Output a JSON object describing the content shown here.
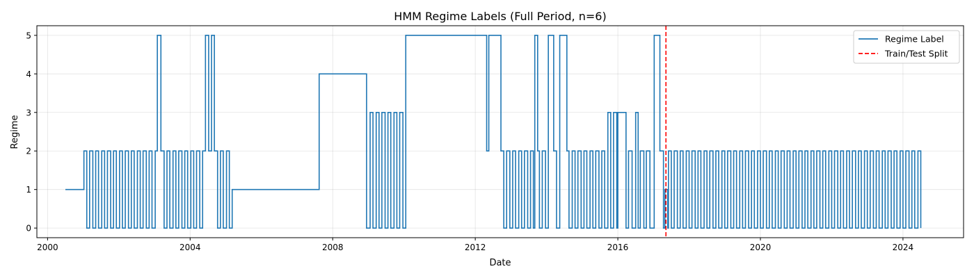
{
  "chart_data": {
    "type": "line",
    "title": "HMM Regime Labels (Full Period, n=6)",
    "xlabel": "Date",
    "ylabel": "Regime",
    "x_ticks": [
      "2000",
      "2004",
      "2008",
      "2012",
      "2016",
      "2020",
      "2024"
    ],
    "y_ticks": [
      "0",
      "1",
      "2",
      "3",
      "4",
      "5"
    ],
    "xlim": [
      1999.7,
      2025.7
    ],
    "ylim": [
      -0.25,
      5.25
    ],
    "grid": true,
    "legend_position": "top-right",
    "series": [
      {
        "name": "Regime Label",
        "color": "#1f77b4",
        "style": "step",
        "points": [
          [
            2000.5,
            1
          ],
          [
            2001.02,
            2
          ],
          [
            2001.1,
            0
          ],
          [
            2001.18,
            2
          ],
          [
            2001.27,
            0
          ],
          [
            2001.35,
            2
          ],
          [
            2001.43,
            0
          ],
          [
            2001.52,
            2
          ],
          [
            2001.6,
            0
          ],
          [
            2001.68,
            2
          ],
          [
            2001.77,
            0
          ],
          [
            2001.85,
            2
          ],
          [
            2001.93,
            0
          ],
          [
            2002.02,
            2
          ],
          [
            2002.1,
            0
          ],
          [
            2002.18,
            2
          ],
          [
            2002.27,
            0
          ],
          [
            2002.35,
            2
          ],
          [
            2002.43,
            0
          ],
          [
            2002.52,
            2
          ],
          [
            2002.6,
            0
          ],
          [
            2002.68,
            2
          ],
          [
            2002.77,
            0
          ],
          [
            2002.85,
            2
          ],
          [
            2002.93,
            0
          ],
          [
            2003.02,
            2
          ],
          [
            2003.08,
            5
          ],
          [
            2003.18,
            2
          ],
          [
            2003.27,
            0
          ],
          [
            2003.35,
            2
          ],
          [
            2003.43,
            0
          ],
          [
            2003.52,
            2
          ],
          [
            2003.6,
            0
          ],
          [
            2003.68,
            2
          ],
          [
            2003.77,
            0
          ],
          [
            2003.85,
            2
          ],
          [
            2003.93,
            0
          ],
          [
            2004.02,
            2
          ],
          [
            2004.1,
            0
          ],
          [
            2004.18,
            2
          ],
          [
            2004.27,
            0
          ],
          [
            2004.35,
            2
          ],
          [
            2004.43,
            5
          ],
          [
            2004.52,
            2
          ],
          [
            2004.6,
            5
          ],
          [
            2004.68,
            2
          ],
          [
            2004.77,
            0
          ],
          [
            2004.85,
            2
          ],
          [
            2004.93,
            0
          ],
          [
            2005.02,
            2
          ],
          [
            2005.1,
            0
          ],
          [
            2005.18,
            1
          ],
          [
            2007.62,
            4
          ],
          [
            2008.95,
            0
          ],
          [
            2009.05,
            3
          ],
          [
            2009.13,
            0
          ],
          [
            2009.22,
            3
          ],
          [
            2009.3,
            0
          ],
          [
            2009.38,
            3
          ],
          [
            2009.47,
            0
          ],
          [
            2009.55,
            3
          ],
          [
            2009.63,
            0
          ],
          [
            2009.72,
            3
          ],
          [
            2009.8,
            0
          ],
          [
            2009.88,
            3
          ],
          [
            2009.97,
            0
          ],
          [
            2010.05,
            5
          ],
          [
            2012.32,
            2
          ],
          [
            2012.38,
            5
          ],
          [
            2012.72,
            2
          ],
          [
            2012.8,
            0
          ],
          [
            2012.88,
            2
          ],
          [
            2012.97,
            0
          ],
          [
            2013.05,
            2
          ],
          [
            2013.13,
            0
          ],
          [
            2013.22,
            2
          ],
          [
            2013.3,
            0
          ],
          [
            2013.38,
            2
          ],
          [
            2013.47,
            0
          ],
          [
            2013.55,
            2
          ],
          [
            2013.63,
            0
          ],
          [
            2013.67,
            5
          ],
          [
            2013.75,
            2
          ],
          [
            2013.8,
            0
          ],
          [
            2013.88,
            2
          ],
          [
            2013.97,
            0
          ],
          [
            2014.05,
            5
          ],
          [
            2014.2,
            2
          ],
          [
            2014.28,
            0
          ],
          [
            2014.37,
            5
          ],
          [
            2014.57,
            2
          ],
          [
            2014.63,
            0
          ],
          [
            2014.72,
            2
          ],
          [
            2014.8,
            0
          ],
          [
            2014.88,
            2
          ],
          [
            2014.97,
            0
          ],
          [
            2015.05,
            2
          ],
          [
            2015.13,
            0
          ],
          [
            2015.22,
            2
          ],
          [
            2015.3,
            0
          ],
          [
            2015.38,
            2
          ],
          [
            2015.47,
            0
          ],
          [
            2015.55,
            2
          ],
          [
            2015.63,
            0
          ],
          [
            2015.72,
            3
          ],
          [
            2015.8,
            0
          ],
          [
            2015.88,
            3
          ],
          [
            2015.97,
            0
          ],
          [
            2016.0,
            3
          ],
          [
            2016.23,
            0
          ],
          [
            2016.3,
            2
          ],
          [
            2016.4,
            0
          ],
          [
            2016.5,
            3
          ],
          [
            2016.57,
            0
          ],
          [
            2016.63,
            2
          ],
          [
            2016.73,
            0
          ],
          [
            2016.8,
            2
          ],
          [
            2016.9,
            0
          ],
          [
            2017.02,
            5
          ],
          [
            2017.18,
            2
          ],
          [
            2017.28,
            0
          ],
          [
            2017.32,
            1
          ],
          [
            2017.4,
            0
          ],
          [
            2017.42,
            2
          ],
          [
            2017.5,
            0
          ],
          [
            2017.58,
            2
          ],
          [
            2017.67,
            0
          ],
          [
            2017.75,
            2
          ],
          [
            2017.83,
            0
          ],
          [
            2017.92,
            2
          ],
          [
            2018.0,
            0
          ],
          [
            2018.08,
            2
          ],
          [
            2018.17,
            0
          ],
          [
            2018.25,
            2
          ],
          [
            2018.33,
            0
          ],
          [
            2018.42,
            2
          ],
          [
            2018.5,
            0
          ],
          [
            2018.58,
            2
          ],
          [
            2018.67,
            0
          ],
          [
            2018.75,
            2
          ],
          [
            2018.83,
            0
          ],
          [
            2018.92,
            2
          ],
          [
            2019.0,
            0
          ],
          [
            2019.08,
            2
          ],
          [
            2019.17,
            0
          ],
          [
            2019.25,
            2
          ],
          [
            2019.33,
            0
          ],
          [
            2019.42,
            2
          ],
          [
            2019.5,
            0
          ],
          [
            2019.58,
            2
          ],
          [
            2019.67,
            0
          ],
          [
            2019.75,
            2
          ],
          [
            2019.83,
            0
          ],
          [
            2019.92,
            2
          ],
          [
            2020.0,
            0
          ],
          [
            2020.08,
            2
          ],
          [
            2020.17,
            0
          ],
          [
            2020.25,
            2
          ],
          [
            2020.33,
            0
          ],
          [
            2020.42,
            2
          ],
          [
            2020.5,
            0
          ],
          [
            2020.58,
            2
          ],
          [
            2020.67,
            0
          ],
          [
            2020.75,
            2
          ],
          [
            2020.83,
            0
          ],
          [
            2020.92,
            2
          ],
          [
            2021.0,
            0
          ],
          [
            2021.08,
            2
          ],
          [
            2021.17,
            0
          ],
          [
            2021.25,
            2
          ],
          [
            2021.33,
            0
          ],
          [
            2021.42,
            2
          ],
          [
            2021.5,
            0
          ],
          [
            2021.58,
            2
          ],
          [
            2021.67,
            0
          ],
          [
            2021.75,
            2
          ],
          [
            2021.83,
            0
          ],
          [
            2021.92,
            2
          ],
          [
            2022.0,
            0
          ],
          [
            2022.08,
            2
          ],
          [
            2022.17,
            0
          ],
          [
            2022.25,
            2
          ],
          [
            2022.33,
            0
          ],
          [
            2022.42,
            2
          ],
          [
            2022.5,
            0
          ],
          [
            2022.58,
            2
          ],
          [
            2022.67,
            0
          ],
          [
            2022.75,
            2
          ],
          [
            2022.83,
            0
          ],
          [
            2022.92,
            2
          ],
          [
            2023.0,
            0
          ],
          [
            2023.08,
            2
          ],
          [
            2023.17,
            0
          ],
          [
            2023.25,
            2
          ],
          [
            2023.33,
            0
          ],
          [
            2023.42,
            2
          ],
          [
            2023.5,
            0
          ],
          [
            2023.58,
            2
          ],
          [
            2023.67,
            0
          ],
          [
            2023.75,
            2
          ],
          [
            2023.83,
            0
          ],
          [
            2023.92,
            2
          ],
          [
            2024.0,
            0
          ],
          [
            2024.08,
            2
          ],
          [
            2024.17,
            0
          ],
          [
            2024.25,
            2
          ],
          [
            2024.33,
            0
          ],
          [
            2024.42,
            2
          ],
          [
            2024.5,
            0
          ]
        ]
      },
      {
        "name": "Train/Test Split",
        "color": "#ff0000",
        "style": "dashed-vertical",
        "x": 2017.35
      }
    ]
  }
}
